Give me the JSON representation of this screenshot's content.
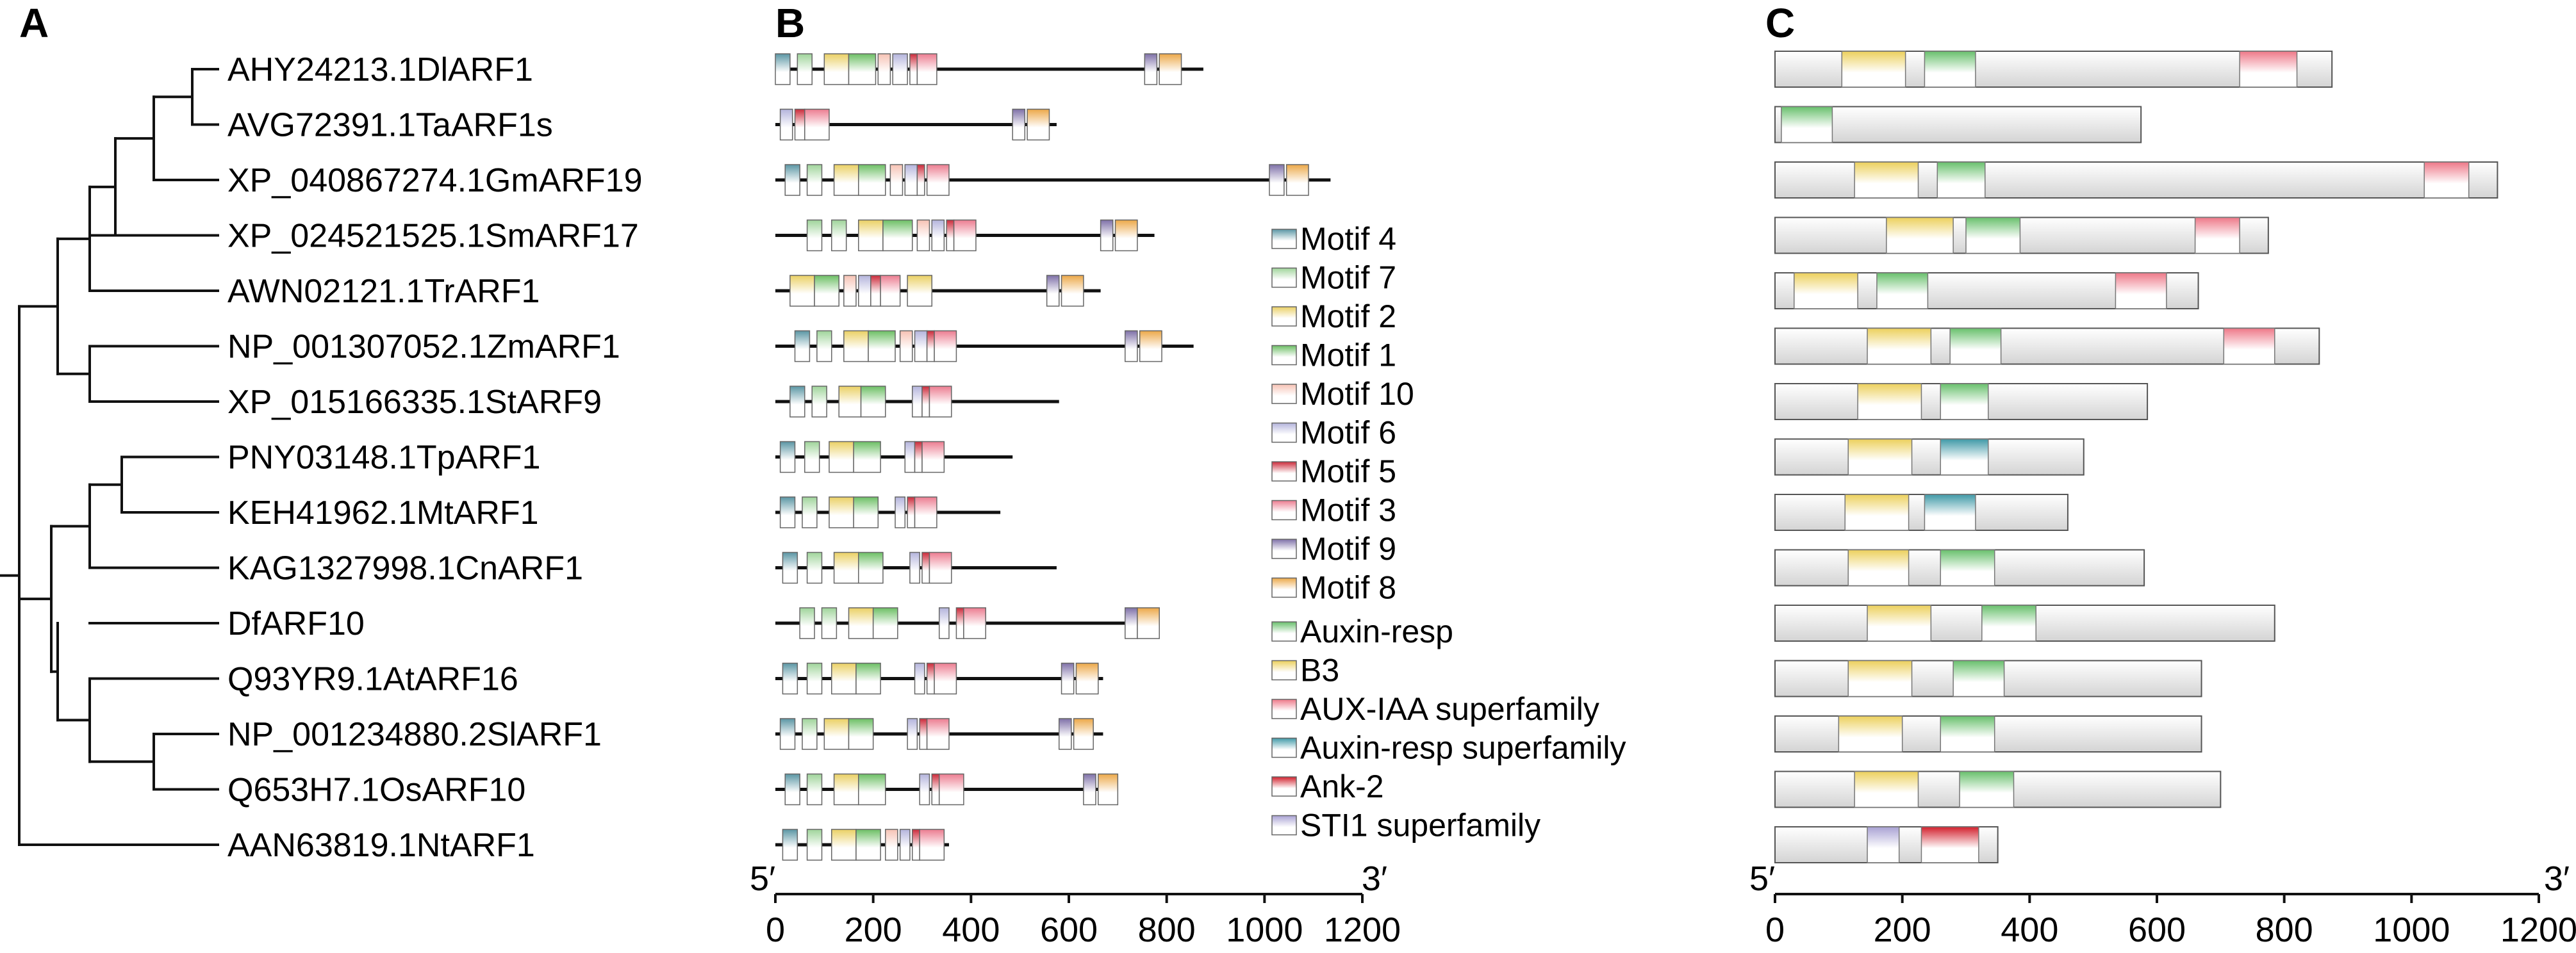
{
  "panels": {
    "a": "A",
    "b": "B",
    "c": "C"
  },
  "colors": {
    "motif_4": "#5a96a4",
    "motif_7": "#9fd49a",
    "motif_2": "#ead064",
    "motif_1": "#6cbf64",
    "motif_10": "#f6c2b4",
    "motif_6": "#b4b4dc",
    "motif_5": "#cc2a3a",
    "motif_3": "#ec7c90",
    "motif_9": "#7e70a8",
    "motif_8": "#eca848",
    "auxin_resp": "#68c06c",
    "b3": "#ecd05c",
    "aux_iaa": "#ee7888",
    "auxin_resp_super": "#3f99a7",
    "ank2": "#d2202c",
    "sti1": "#a9a2d4",
    "protein_bar": "#d4d4d4"
  },
  "tree": {
    "taxa": [
      "AHY24213.1DlARF1",
      "AVG72391.1TaARF1s",
      "XP_040867274.1GmARF19",
      "XP_024521525.1SmARF17",
      "AWN02121.1TrARF1",
      "NP_001307052.1ZmARF1",
      "XP_015166335.1StARF9",
      "PNY03148.1TpARF1",
      "KEH41962.1MtARF1",
      "KAG1327998.1CnARF1",
      "DfARF10",
      "Q93YR9.1AtARF16",
      "NP_001234880.2SlARF1",
      "Q653H7.1OsARF10",
      "AAN63819.1NtARF1"
    ]
  },
  "legend": {
    "motifs": [
      {
        "label": "Motif 4",
        "color_key": "motif_4"
      },
      {
        "label": "Motif 7",
        "color_key": "motif_7"
      },
      {
        "label": "Motif 2",
        "color_key": "motif_2"
      },
      {
        "label": "Motif 1",
        "color_key": "motif_1"
      },
      {
        "label": "Motif 10",
        "color_key": "motif_10"
      },
      {
        "label": "Motif 6",
        "color_key": "motif_6"
      },
      {
        "label": "Motif 5",
        "color_key": "motif_5"
      },
      {
        "label": "Motif 3",
        "color_key": "motif_3"
      },
      {
        "label": "Motif 9",
        "color_key": "motif_9"
      },
      {
        "label": "Motif 8",
        "color_key": "motif_8"
      }
    ],
    "domains": [
      {
        "label": "Auxin-resp",
        "color_key": "auxin_resp"
      },
      {
        "label": "B3",
        "color_key": "b3"
      },
      {
        "label": "AUX-IAA superfamily",
        "color_key": "aux_iaa"
      },
      {
        "label": "Auxin-resp superfamily",
        "color_key": "auxin_resp_super"
      },
      {
        "label": "Ank-2",
        "color_key": "ank2"
      },
      {
        "label": "STI1 superfamily",
        "color_key": "sti1"
      }
    ]
  },
  "axis_b": {
    "left_end": "5′",
    "right_end": "3′",
    "ticks": [
      "0",
      "200",
      "400",
      "600",
      "800",
      "1000",
      "1200"
    ],
    "max": 1200
  },
  "axis_c": {
    "left_end": "5′",
    "right_end": "3′",
    "ticks": [
      "0",
      "200",
      "400",
      "600",
      "800",
      "1000",
      "1200"
    ],
    "max": 1200
  },
  "motif_structures": [
    {
      "length": 875,
      "motifs": [
        [
          "motif_4",
          0,
          30
        ],
        [
          "motif_7",
          45,
          75
        ],
        [
          "motif_2",
          100,
          150
        ],
        [
          "motif_1",
          150,
          205
        ],
        [
          "motif_10",
          210,
          235
        ],
        [
          "motif_6",
          240,
          270
        ],
        [
          "motif_5",
          275,
          290
        ],
        [
          "motif_3",
          290,
          330
        ],
        [
          "motif_9",
          755,
          780
        ],
        [
          "motif_8",
          785,
          830
        ]
      ]
    },
    {
      "length": 575,
      "motifs": [
        [
          "motif_6",
          10,
          35
        ],
        [
          "motif_5",
          40,
          60
        ],
        [
          "motif_3",
          60,
          110
        ],
        [
          "motif_9",
          485,
          510
        ],
        [
          "motif_8",
          515,
          560
        ]
      ]
    },
    {
      "length": 1135,
      "motifs": [
        [
          "motif_4",
          20,
          50
        ],
        [
          "motif_7",
          65,
          95
        ],
        [
          "motif_2",
          120,
          170
        ],
        [
          "motif_1",
          170,
          225
        ],
        [
          "motif_10",
          235,
          260
        ],
        [
          "motif_6",
          265,
          290
        ],
        [
          "motif_5",
          290,
          305
        ],
        [
          "motif_3",
          310,
          355
        ],
        [
          "motif_9",
          1010,
          1040
        ],
        [
          "motif_8",
          1045,
          1090
        ]
      ]
    },
    {
      "length": 775,
      "motifs": [
        [
          "motif_7",
          65,
          95
        ],
        [
          "motif_7",
          115,
          145
        ],
        [
          "motif_2",
          170,
          220
        ],
        [
          "motif_1",
          220,
          280
        ],
        [
          "motif_10",
          290,
          315
        ],
        [
          "motif_6",
          320,
          345
        ],
        [
          "motif_5",
          350,
          365
        ],
        [
          "motif_3",
          365,
          410
        ],
        [
          "motif_9",
          665,
          690
        ],
        [
          "motif_8",
          695,
          740
        ]
      ]
    },
    {
      "length": 665,
      "motifs": [
        [
          "motif_2",
          30,
          80
        ],
        [
          "motif_1",
          80,
          130
        ],
        [
          "motif_10",
          140,
          165
        ],
        [
          "motif_6",
          170,
          195
        ],
        [
          "motif_5",
          195,
          215
        ],
        [
          "motif_3",
          215,
          255
        ],
        [
          "motif_2",
          270,
          320
        ],
        [
          "motif_9",
          555,
          580
        ],
        [
          "motif_8",
          585,
          630
        ]
      ]
    },
    {
      "length": 855,
      "motifs": [
        [
          "motif_4",
          40,
          70
        ],
        [
          "motif_7",
          85,
          115
        ],
        [
          "motif_2",
          140,
          190
        ],
        [
          "motif_1",
          190,
          245
        ],
        [
          "motif_10",
          255,
          280
        ],
        [
          "motif_6",
          285,
          310
        ],
        [
          "motif_5",
          310,
          325
        ],
        [
          "motif_3",
          325,
          370
        ],
        [
          "motif_9",
          715,
          740
        ],
        [
          "motif_8",
          745,
          790
        ]
      ]
    },
    {
      "length": 580,
      "motifs": [
        [
          "motif_4",
          30,
          60
        ],
        [
          "motif_7",
          75,
          105
        ],
        [
          "motif_2",
          130,
          175
        ],
        [
          "motif_1",
          175,
          225
        ],
        [
          "motif_6",
          280,
          300
        ],
        [
          "motif_5",
          300,
          315
        ],
        [
          "motif_3",
          315,
          360
        ]
      ]
    },
    {
      "length": 485,
      "motifs": [
        [
          "motif_4",
          10,
          40
        ],
        [
          "motif_7",
          60,
          90
        ],
        [
          "motif_2",
          110,
          160
        ],
        [
          "motif_1",
          160,
          215
        ],
        [
          "motif_6",
          265,
          285
        ],
        [
          "motif_5",
          285,
          300
        ],
        [
          "motif_3",
          300,
          345
        ]
      ]
    },
    {
      "length": 460,
      "motifs": [
        [
          "motif_4",
          10,
          40
        ],
        [
          "motif_7",
          55,
          85
        ],
        [
          "motif_2",
          110,
          160
        ],
        [
          "motif_1",
          160,
          210
        ],
        [
          "motif_6",
          245,
          265
        ],
        [
          "motif_5",
          270,
          285
        ],
        [
          "motif_3",
          285,
          330
        ]
      ]
    },
    {
      "length": 575,
      "motifs": [
        [
          "motif_4",
          15,
          45
        ],
        [
          "motif_7",
          65,
          95
        ],
        [
          "motif_2",
          120,
          170
        ],
        [
          "motif_1",
          170,
          220
        ],
        [
          "motif_6",
          275,
          295
        ],
        [
          "motif_5",
          300,
          315
        ],
        [
          "motif_3",
          315,
          360
        ]
      ]
    },
    {
      "length": 780,
      "motifs": [
        [
          "motif_7",
          50,
          80
        ],
        [
          "motif_7",
          95,
          125
        ],
        [
          "motif_2",
          150,
          200
        ],
        [
          "motif_1",
          200,
          250
        ],
        [
          "motif_6",
          335,
          355
        ],
        [
          "motif_5",
          370,
          385
        ],
        [
          "motif_3",
          385,
          430
        ],
        [
          "motif_9",
          715,
          740
        ],
        [
          "motif_8",
          740,
          785
        ]
      ]
    },
    {
      "length": 670,
      "motifs": [
        [
          "motif_4",
          15,
          45
        ],
        [
          "motif_7",
          65,
          95
        ],
        [
          "motif_2",
          115,
          165
        ],
        [
          "motif_1",
          165,
          215
        ],
        [
          "motif_6",
          285,
          305
        ],
        [
          "motif_5",
          310,
          325
        ],
        [
          "motif_3",
          325,
          370
        ],
        [
          "motif_9",
          585,
          610
        ],
        [
          "motif_8",
          615,
          660
        ]
      ]
    },
    {
      "length": 670,
      "motifs": [
        [
          "motif_4",
          10,
          40
        ],
        [
          "motif_7",
          55,
          85
        ],
        [
          "motif_2",
          100,
          150
        ],
        [
          "motif_1",
          150,
          200
        ],
        [
          "motif_6",
          270,
          290
        ],
        [
          "motif_5",
          295,
          310
        ],
        [
          "motif_3",
          310,
          355
        ],
        [
          "motif_9",
          580,
          605
        ],
        [
          "motif_8",
          610,
          650
        ]
      ]
    },
    {
      "length": 700,
      "motifs": [
        [
          "motif_4",
          20,
          50
        ],
        [
          "motif_7",
          65,
          95
        ],
        [
          "motif_2",
          120,
          170
        ],
        [
          "motif_1",
          170,
          225
        ],
        [
          "motif_6",
          295,
          315
        ],
        [
          "motif_5",
          320,
          335
        ],
        [
          "motif_3",
          335,
          385
        ],
        [
          "motif_9",
          630,
          655
        ],
        [
          "motif_8",
          660,
          700
        ]
      ]
    },
    {
      "length": 355,
      "motifs": [
        [
          "motif_4",
          15,
          45
        ],
        [
          "motif_7",
          65,
          95
        ],
        [
          "motif_2",
          115,
          165
        ],
        [
          "motif_1",
          165,
          215
        ],
        [
          "motif_10",
          225,
          250
        ],
        [
          "motif_6",
          255,
          275
        ],
        [
          "motif_5",
          280,
          295
        ],
        [
          "motif_3",
          295,
          345
        ]
      ]
    }
  ],
  "domain_structures": [
    {
      "length": 875,
      "domains": [
        [
          "b3",
          105,
          205
        ],
        [
          "auxin_resp",
          235,
          315
        ],
        [
          "aux_iaa",
          730,
          820
        ]
      ]
    },
    {
      "length": 575,
      "domains": [
        [
          "auxin_resp",
          10,
          90
        ]
      ]
    },
    {
      "length": 1135,
      "domains": [
        [
          "b3",
          125,
          225
        ],
        [
          "auxin_resp",
          255,
          330
        ],
        [
          "aux_iaa",
          1020,
          1090
        ]
      ]
    },
    {
      "length": 775,
      "domains": [
        [
          "b3",
          175,
          280
        ],
        [
          "auxin_resp",
          300,
          385
        ],
        [
          "aux_iaa",
          660,
          730
        ]
      ]
    },
    {
      "length": 665,
      "domains": [
        [
          "b3",
          30,
          130
        ],
        [
          "auxin_resp",
          160,
          240
        ],
        [
          "aux_iaa",
          535,
          615
        ]
      ]
    },
    {
      "length": 855,
      "domains": [
        [
          "b3",
          145,
          245
        ],
        [
          "auxin_resp",
          275,
          355
        ],
        [
          "aux_iaa",
          705,
          785
        ]
      ]
    },
    {
      "length": 585,
      "domains": [
        [
          "b3",
          130,
          230
        ],
        [
          "auxin_resp",
          260,
          335
        ]
      ]
    },
    {
      "length": 485,
      "domains": [
        [
          "b3",
          115,
          215
        ],
        [
          "auxin_resp_super",
          260,
          335
        ]
      ]
    },
    {
      "length": 460,
      "domains": [
        [
          "b3",
          110,
          210
        ],
        [
          "auxin_resp_super",
          235,
          315
        ]
      ]
    },
    {
      "length": 580,
      "domains": [
        [
          "b3",
          115,
          210
        ],
        [
          "auxin_resp",
          260,
          345
        ]
      ]
    },
    {
      "length": 785,
      "domains": [
        [
          "b3",
          145,
          245
        ],
        [
          "auxin_resp",
          325,
          410
        ]
      ]
    },
    {
      "length": 670,
      "domains": [
        [
          "b3",
          115,
          215
        ],
        [
          "auxin_resp",
          280,
          360
        ]
      ]
    },
    {
      "length": 670,
      "domains": [
        [
          "b3",
          100,
          200
        ],
        [
          "auxin_resp",
          260,
          345
        ]
      ]
    },
    {
      "length": 700,
      "domains": [
        [
          "b3",
          125,
          225
        ],
        [
          "auxin_resp",
          290,
          375
        ]
      ]
    },
    {
      "length": 350,
      "domains": [
        [
          "sti1",
          145,
          195
        ],
        [
          "ank2",
          230,
          320
        ]
      ]
    }
  ]
}
